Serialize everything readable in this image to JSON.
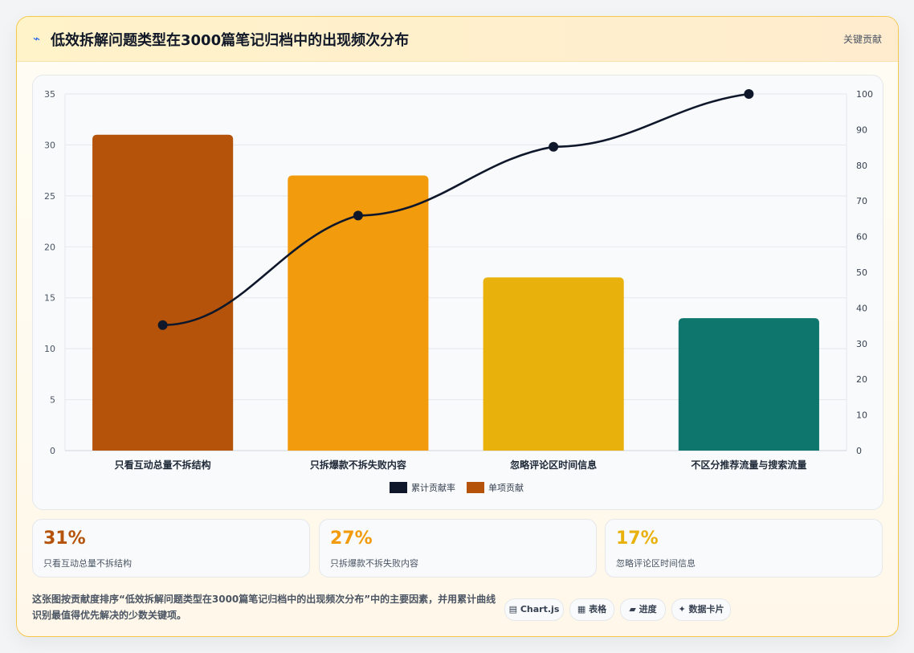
{
  "header": {
    "title": "低效拆解问题类型在3000篇笔记归档中的出现频次分布",
    "badge": "关键贡献"
  },
  "chart_data": {
    "type": "bar",
    "categories": [
      "只看互动总量不拆结构",
      "只拆爆款不拆失败内容",
      "忽略评论区时间信息",
      "不区分推荐流量与搜索流量"
    ],
    "series": [
      {
        "name": "单项贡献",
        "type": "bar",
        "axis": "left",
        "values": [
          31,
          27,
          17,
          13
        ],
        "colors": [
          "#b45309",
          "#f29b0c",
          "#e8b10c",
          "#0f766e"
        ]
      },
      {
        "name": "累计贡献率",
        "type": "line",
        "axis": "right",
        "values": [
          35.2,
          65.9,
          85.2,
          100
        ],
        "color": "#0f172a"
      }
    ],
    "ylim_left": [
      0,
      35
    ],
    "yticks_left": [
      0,
      5,
      10,
      15,
      20,
      25,
      30,
      35
    ],
    "ylim_right": [
      0,
      100
    ],
    "yticks_right": [
      0,
      10,
      20,
      30,
      40,
      50,
      60,
      70,
      80,
      90,
      100
    ],
    "legend_position": "bottom",
    "legend": [
      {
        "name": "累计贡献率",
        "color": "#0f172a"
      },
      {
        "name": "单项贡献",
        "color": "#b45309"
      }
    ],
    "grid": true
  },
  "stats": [
    {
      "value": "31%",
      "label": "只看互动总量不拆结构",
      "color": "#b45309"
    },
    {
      "value": "27%",
      "label": "只拆爆款不拆失败内容",
      "color": "#f29b0c"
    },
    {
      "value": "17%",
      "label": "忽略评论区时间信息",
      "color": "#e8b10c"
    }
  ],
  "footer": {
    "description": "这张图按贡献度排序“低效拆解问题类型在3000篇笔记归档中的出现频次分布”中的主要因素，并用累计曲线识别最值得优先解决的少数关键项。",
    "tags": [
      {
        "icon": "▤",
        "label": "Chart.js"
      },
      {
        "icon": "▦",
        "label": "表格"
      },
      {
        "icon": "▰",
        "label": "进度"
      },
      {
        "icon": "✦",
        "label": "数据卡片"
      }
    ]
  }
}
